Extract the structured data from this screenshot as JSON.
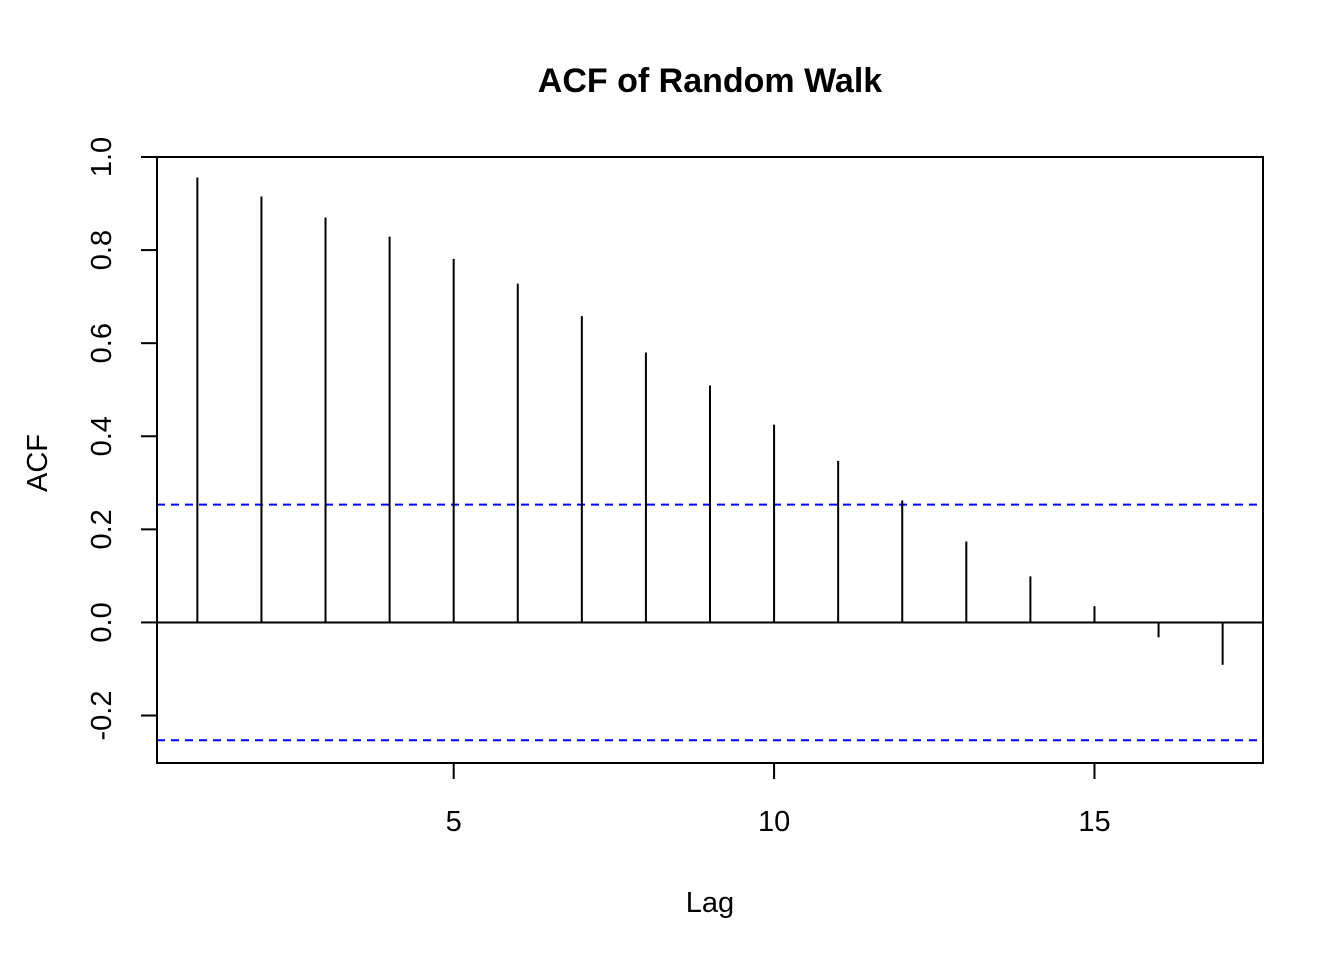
{
  "chart_data": {
    "type": "bar",
    "title": "ACF of Random Walk",
    "xlabel": "Lag",
    "ylabel": "ACF",
    "x": [
      1,
      2,
      3,
      4,
      5,
      6,
      7,
      8,
      9,
      10,
      11,
      12,
      13,
      14,
      15,
      16,
      17
    ],
    "values": [
      0.956,
      0.915,
      0.87,
      0.829,
      0.781,
      0.728,
      0.658,
      0.58,
      0.509,
      0.425,
      0.347,
      0.262,
      0.174,
      0.099,
      0.035,
      -0.032,
      -0.091
    ],
    "xlim": [
      0.37,
      17.63
    ],
    "ylim": [
      -0.302,
      1.0
    ],
    "xticks": [
      5,
      10,
      15
    ],
    "yticks": [
      -0.2,
      0.0,
      0.2,
      0.4,
      0.6,
      0.8,
      1.0
    ],
    "x_tick_labels": [
      "5",
      "10",
      "15"
    ],
    "y_tick_labels": [
      "-0.2",
      "0.0",
      "0.2",
      "0.4",
      "0.6",
      "0.8",
      "1.0"
    ],
    "confidence_band": [
      0.253,
      -0.253
    ],
    "confidence_color": "#0000ff",
    "bar_color": "#000000",
    "grid": false,
    "legend": "none"
  }
}
